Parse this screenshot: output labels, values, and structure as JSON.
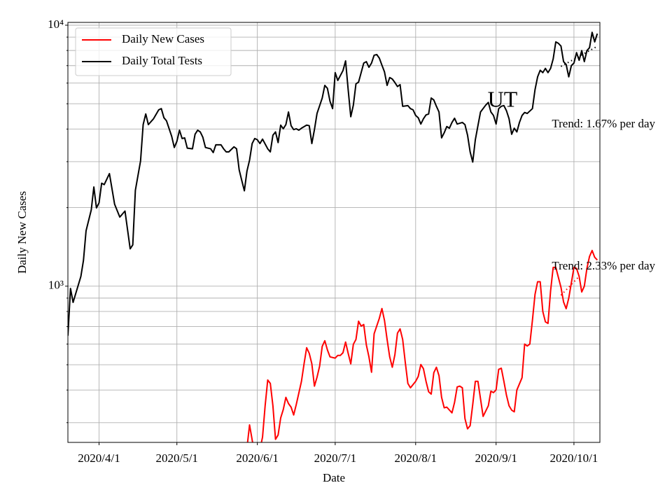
{
  "chart_data": {
    "type": "line",
    "x_label": "Date",
    "y_label": "Daily New Cases",
    "xlim": [
      "2020-03-20",
      "2020-10-11"
    ],
    "xticks": [
      {
        "value": "2020-04-01",
        "label": "2020/4/1"
      },
      {
        "value": "2020-05-01",
        "label": "2020/5/1"
      },
      {
        "value": "2020-06-01",
        "label": "2020/6/1"
      },
      {
        "value": "2020-07-01",
        "label": "2020/7/1"
      },
      {
        "value": "2020-08-01",
        "label": "2020/8/1"
      },
      {
        "value": "2020-09-01",
        "label": "2020/9/1"
      },
      {
        "value": "2020-10-01",
        "label": "2020/10/1"
      }
    ],
    "ylim": [
      252,
      10250
    ],
    "log_y": true,
    "yticks": [
      {
        "value": 1000,
        "label": "10³"
      },
      {
        "value": 10000,
        "label": "10⁴"
      }
    ],
    "yticks_minor": [
      300,
      400,
      500,
      600,
      700,
      800,
      900,
      2000,
      3000,
      4000,
      5000,
      6000,
      7000,
      8000,
      9000
    ],
    "grid": true,
    "legend": "upper left",
    "series": [
      {
        "name": "Daily New Cases",
        "color": "#ff0000",
        "x": [
          "2020-05-28",
          "2020-05-29",
          "2020-05-31",
          "2020-06-01",
          "2020-06-03",
          "2020-06-04",
          "2020-06-05",
          "2020-06-06",
          "2020-06-07",
          "2020-06-08",
          "2020-06-09",
          "2020-06-10",
          "2020-06-11",
          "2020-06-12",
          "2020-06-13",
          "2020-06-14",
          "2020-06-15",
          "2020-06-16",
          "2020-06-18",
          "2020-06-19",
          "2020-06-20",
          "2020-06-21",
          "2020-06-22",
          "2020-06-23",
          "2020-06-24",
          "2020-06-25",
          "2020-06-26",
          "2020-06-27",
          "2020-06-28",
          "2020-06-29",
          "2020-07-01",
          "2020-07-02",
          "2020-07-03",
          "2020-07-04",
          "2020-07-05",
          "2020-07-06",
          "2020-07-07",
          "2020-07-08",
          "2020-07-09",
          "2020-07-10",
          "2020-07-11",
          "2020-07-12",
          "2020-07-13",
          "2020-07-14",
          "2020-07-15",
          "2020-07-16",
          "2020-07-18",
          "2020-07-19",
          "2020-07-20",
          "2020-07-21",
          "2020-07-22",
          "2020-07-23",
          "2020-07-24",
          "2020-07-25",
          "2020-07-26",
          "2020-07-27",
          "2020-07-28",
          "2020-07-29",
          "2020-07-30",
          "2020-08-01",
          "2020-08-02",
          "2020-08-03",
          "2020-08-04",
          "2020-08-05",
          "2020-08-06",
          "2020-08-07",
          "2020-08-08",
          "2020-08-09",
          "2020-08-10",
          "2020-08-11",
          "2020-08-12",
          "2020-08-13",
          "2020-08-15",
          "2020-08-16",
          "2020-08-17",
          "2020-08-18",
          "2020-08-19",
          "2020-08-20",
          "2020-08-21",
          "2020-08-22",
          "2020-08-23",
          "2020-08-24",
          "2020-08-25",
          "2020-08-26",
          "2020-08-27",
          "2020-08-29",
          "2020-08-30",
          "2020-08-31",
          "2020-09-01",
          "2020-09-02",
          "2020-09-03",
          "2020-09-04",
          "2020-09-05",
          "2020-09-06",
          "2020-09-07",
          "2020-09-08",
          "2020-09-09",
          "2020-09-11",
          "2020-09-12",
          "2020-09-13",
          "2020-09-14",
          "2020-09-15",
          "2020-09-16",
          "2020-09-17",
          "2020-09-18",
          "2020-09-19",
          "2020-09-20",
          "2020-09-21",
          "2020-09-22",
          "2020-09-23",
          "2020-09-24",
          "2020-09-26",
          "2020-09-27",
          "2020-09-28",
          "2020-09-29",
          "2020-09-30",
          "2020-10-01",
          "2020-10-02",
          "2020-10-03",
          "2020-10-04",
          "2020-10-05",
          "2020-10-06",
          "2020-10-07",
          "2020-10-08",
          "2020-10-09",
          "2020-10-10"
        ],
        "values": [
          240,
          294,
          226,
          212,
          264,
          348,
          437,
          424,
          348,
          259,
          269,
          313,
          337,
          375,
          355,
          344,
          321,
          352,
          432,
          504,
          581,
          553,
          504,
          414,
          448,
          494,
          588,
          618,
          570,
          536,
          530,
          543,
          543,
          556,
          611,
          553,
          504,
          599,
          625,
          734,
          703,
          713,
          596,
          536,
          468,
          657,
          753,
          821,
          739,
          625,
          536,
          489,
          546,
          661,
          686,
          625,
          511,
          424,
          408,
          432,
          451,
          501,
          483,
          432,
          394,
          386,
          466,
          489,
          454,
          375,
          342,
          344,
          327,
          359,
          411,
          414,
          408,
          311,
          284,
          292,
          352,
          432,
          432,
          370,
          317,
          348,
          396,
          391,
          401,
          480,
          485,
          432,
          382,
          348,
          335,
          330,
          400,
          446,
          600,
          590,
          600,
          740,
          930,
          1040,
          1040,
          800,
          730,
          720,
          960,
          1180,
          1180,
          990,
          870,
          820,
          900,
          1030,
          1180,
          1170,
          1090,
          950,
          1000,
          1170,
          1300,
          1370,
          1290,
          1260
        ]
      },
      {
        "name": "Daily Total Tests",
        "color": "#000000",
        "x": [
          "2020-03-20",
          "2020-03-21",
          "2020-03-22",
          "2020-03-25",
          "2020-03-26",
          "2020-03-27",
          "2020-03-29",
          "2020-03-30",
          "2020-03-31",
          "2020-04-01",
          "2020-04-02",
          "2020-04-03",
          "2020-04-05",
          "2020-04-07",
          "2020-04-09",
          "2020-04-11",
          "2020-04-13",
          "2020-04-14",
          "2020-04-15",
          "2020-04-17",
          "2020-04-18",
          "2020-04-19",
          "2020-04-20",
          "2020-04-22",
          "2020-04-24",
          "2020-04-25",
          "2020-04-26",
          "2020-04-27",
          "2020-04-29",
          "2020-04-30",
          "2020-05-01",
          "2020-05-02",
          "2020-05-03",
          "2020-05-04",
          "2020-05-05",
          "2020-05-07",
          "2020-05-08",
          "2020-05-09",
          "2020-05-10",
          "2020-05-11",
          "2020-05-12",
          "2020-05-14",
          "2020-05-15",
          "2020-05-16",
          "2020-05-18",
          "2020-05-19",
          "2020-05-20",
          "2020-05-21",
          "2020-05-23",
          "2020-05-24",
          "2020-05-25",
          "2020-05-26",
          "2020-05-27",
          "2020-05-28",
          "2020-05-29",
          "2020-05-30",
          "2020-05-31",
          "2020-06-01",
          "2020-06-02",
          "2020-06-03",
          "2020-06-05",
          "2020-06-06",
          "2020-06-07",
          "2020-06-08",
          "2020-06-09",
          "2020-06-10",
          "2020-06-11",
          "2020-06-12",
          "2020-06-13",
          "2020-06-14",
          "2020-06-15",
          "2020-06-16",
          "2020-06-17",
          "2020-06-18",
          "2020-06-20",
          "2020-06-21",
          "2020-06-22",
          "2020-06-23",
          "2020-06-24",
          "2020-06-26",
          "2020-06-27",
          "2020-06-28",
          "2020-06-29",
          "2020-06-30",
          "2020-07-01",
          "2020-07-02",
          "2020-07-04",
          "2020-07-05",
          "2020-07-06",
          "2020-07-07",
          "2020-07-08",
          "2020-07-09",
          "2020-07-10",
          "2020-07-11",
          "2020-07-12",
          "2020-07-13",
          "2020-07-14",
          "2020-07-15",
          "2020-07-16",
          "2020-07-17",
          "2020-07-18",
          "2020-07-19",
          "2020-07-20",
          "2020-07-21",
          "2020-07-22",
          "2020-07-23",
          "2020-07-24",
          "2020-07-25",
          "2020-07-26",
          "2020-07-27",
          "2020-07-29",
          "2020-07-30",
          "2020-07-31",
          "2020-08-01",
          "2020-08-02",
          "2020-08-03",
          "2020-08-04",
          "2020-08-05",
          "2020-08-06",
          "2020-08-07",
          "2020-08-08",
          "2020-08-09",
          "2020-08-10",
          "2020-08-11",
          "2020-08-12",
          "2020-08-13",
          "2020-08-14",
          "2020-08-15",
          "2020-08-16",
          "2020-08-17",
          "2020-08-19",
          "2020-08-20",
          "2020-08-21",
          "2020-08-22",
          "2020-08-23",
          "2020-08-24",
          "2020-08-25",
          "2020-08-26",
          "2020-08-28",
          "2020-08-29",
          "2020-08-30",
          "2020-08-31",
          "2020-09-01",
          "2020-09-02",
          "2020-09-03",
          "2020-09-04",
          "2020-09-05",
          "2020-09-06",
          "2020-09-07",
          "2020-09-08",
          "2020-09-09",
          "2020-09-10",
          "2020-09-11",
          "2020-09-12",
          "2020-09-13",
          "2020-09-15",
          "2020-09-16",
          "2020-09-17",
          "2020-09-18",
          "2020-09-19",
          "2020-09-20",
          "2020-09-21",
          "2020-09-22",
          "2020-09-23",
          "2020-09-24",
          "2020-09-25",
          "2020-09-26",
          "2020-09-27",
          "2020-09-28",
          "2020-09-29",
          "2020-09-30",
          "2020-10-01",
          "2020-10-02",
          "2020-10-03",
          "2020-10-04",
          "2020-10-05",
          "2020-10-06",
          "2020-10-07",
          "2020-10-08",
          "2020-10-09",
          "2020-10-10"
        ],
        "values": [
          646,
          980,
          867,
          1090,
          1256,
          1630,
          1960,
          2400,
          1995,
          2085,
          2480,
          2450,
          2700,
          2060,
          1840,
          1940,
          1390,
          1440,
          2330,
          3020,
          4160,
          4570,
          4160,
          4380,
          4740,
          4790,
          4420,
          4300,
          3750,
          3400,
          3590,
          3960,
          3680,
          3700,
          3380,
          3360,
          3820,
          3960,
          3900,
          3720,
          3400,
          3360,
          3250,
          3480,
          3480,
          3360,
          3270,
          3270,
          3420,
          3360,
          2790,
          2540,
          2320,
          2760,
          3040,
          3520,
          3680,
          3640,
          3520,
          3660,
          3360,
          3270,
          3790,
          3900,
          3550,
          4140,
          4010,
          4160,
          4650,
          4120,
          3980,
          4010,
          3960,
          4030,
          4140,
          4120,
          3520,
          3980,
          4590,
          5260,
          5880,
          5730,
          5110,
          4790,
          6580,
          6140,
          6700,
          7300,
          5660,
          4460,
          4940,
          5960,
          6050,
          6580,
          7160,
          7250,
          6900,
          7160,
          7670,
          7720,
          7480,
          7030,
          6620,
          5880,
          6300,
          6220,
          6030,
          5820,
          5920,
          4890,
          4920,
          4790,
          4740,
          4510,
          4420,
          4180,
          4380,
          4530,
          4570,
          5260,
          5170,
          4890,
          4650,
          3700,
          3870,
          4090,
          4030,
          4240,
          4400,
          4180,
          4240,
          4160,
          3790,
          3270,
          2990,
          3640,
          4120,
          4650,
          4940,
          5060,
          4650,
          4510,
          4180,
          4790,
          4890,
          4920,
          4700,
          4380,
          3820,
          4030,
          3900,
          4240,
          4510,
          4630,
          4590,
          4790,
          5660,
          6340,
          6720,
          6580,
          6830,
          6580,
          6830,
          7430,
          8630,
          8520,
          8320,
          7250,
          7070,
          6340,
          7000,
          7160,
          7850,
          7340,
          7990,
          7250,
          7990,
          8200,
          9390,
          8630,
          9280
        ]
      }
    ],
    "trends": [
      {
        "color": "#000000",
        "x": [
          "2020-09-26",
          "2020-10-10"
        ],
        "values": [
          6950,
          8300
        ]
      },
      {
        "color": "#ff0000",
        "x": [
          "2020-09-26",
          "2020-10-03"
        ],
        "values": [
          923,
          1090
        ]
      }
    ],
    "annotations": [
      "UT",
      "Trend: 1.67% per day",
      "Trend: 2.33% per day"
    ]
  }
}
